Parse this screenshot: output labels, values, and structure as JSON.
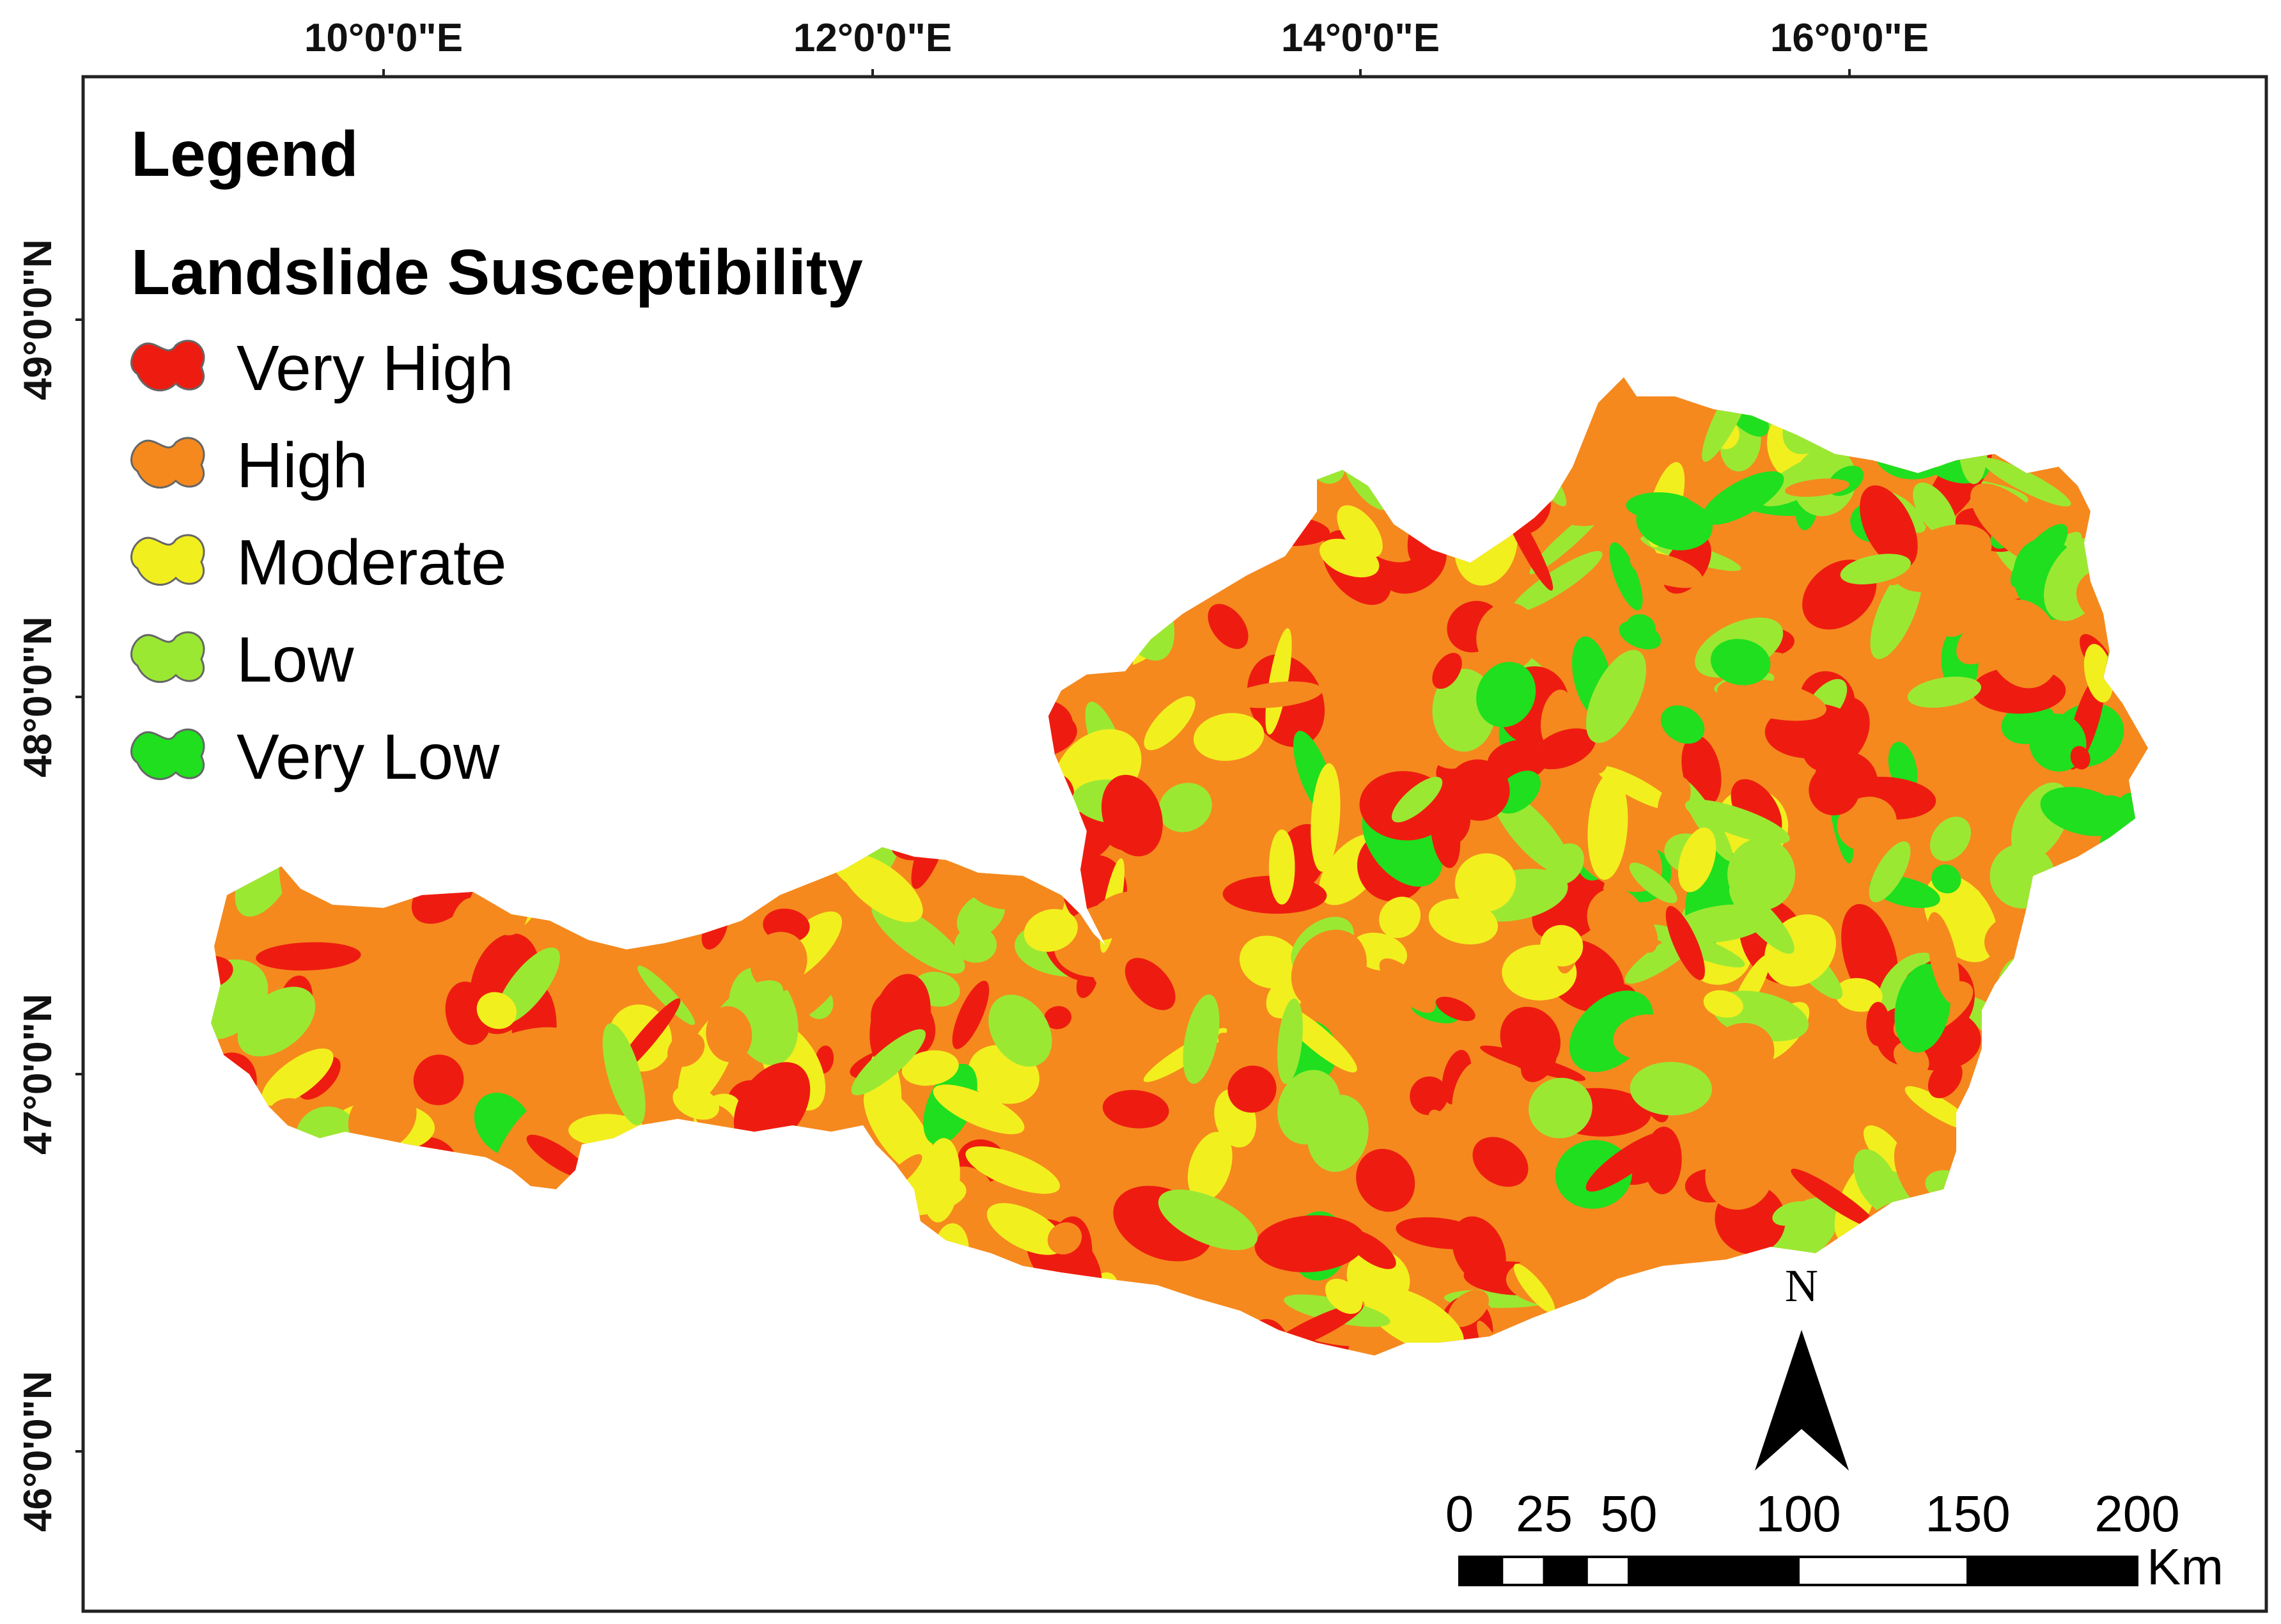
{
  "map": {
    "lon_ticks": [
      "10°0'0\"E",
      "12°0'0\"E",
      "14°0'0\"E",
      "16°0'0\"E"
    ],
    "lat_ticks": [
      "49°0'0\"N",
      "48°0'0\"N",
      "47°0'0\"N",
      "46°0'0\"N"
    ],
    "region": "Austria"
  },
  "legend": {
    "title": "Legend",
    "subtitle": "Landslide Susceptibility",
    "items": [
      {
        "label": "Very High",
        "color": "#ee1c10"
      },
      {
        "label": "High",
        "color": "#f5891e"
      },
      {
        "label": "Moderate",
        "color": "#f2ef1f"
      },
      {
        "label": "Low",
        "color": "#9be833"
      },
      {
        "label": "Very Low",
        "color": "#1fdf1f"
      }
    ]
  },
  "scale_bar": {
    "labels": [
      "0",
      "25",
      "50",
      "100",
      "150",
      "200"
    ],
    "unit": "Km"
  },
  "north_arrow": {
    "label": "N"
  }
}
